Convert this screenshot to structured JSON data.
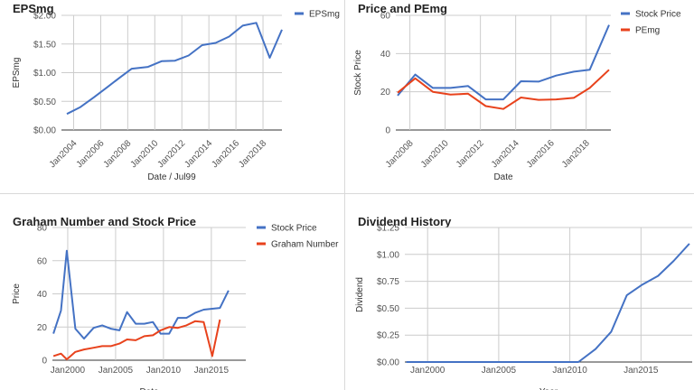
{
  "chart_data": [
    {
      "id": "eps",
      "type": "line",
      "title": "EPSmg",
      "xlabel": "Date / Jul99",
      "ylabel": "EPSmg",
      "x_type": "year",
      "xlim": [
        2003.1,
        2019.4
      ],
      "ylim": [
        0,
        2
      ],
      "yticks": [
        0,
        0.5,
        1,
        1.5,
        2
      ],
      "ytick_labels": [
        "$0.00",
        "$0.50",
        "$1.00",
        "$1.50",
        "$2.00"
      ],
      "xticks": [
        2004,
        2006,
        2008,
        2010,
        2012,
        2014,
        2016,
        2018
      ],
      "xtick_labels": [
        "Jan2004",
        "Jan2006",
        "Jan2008",
        "Jan2010",
        "Jan2012",
        "Jan2014",
        "Jan2016",
        "Jan2018"
      ],
      "x_label_rotation": -45,
      "grid": true,
      "legend": "right",
      "series": [
        {
          "name": "EPSmg",
          "color": "#4472c4",
          "points": [
            [
              2003.5,
              0.28
            ],
            [
              2004.5,
              0.4
            ],
            [
              2005.5,
              0.57
            ],
            [
              2006.5,
              0.75
            ],
            [
              2007.5,
              0.93
            ],
            [
              2008.3,
              1.07
            ],
            [
              2009.5,
              1.1
            ],
            [
              2010.5,
              1.2
            ],
            [
              2011.5,
              1.21
            ],
            [
              2012.5,
              1.3
            ],
            [
              2013.5,
              1.48
            ],
            [
              2014.5,
              1.52
            ],
            [
              2015.5,
              1.63
            ],
            [
              2016.5,
              1.82
            ],
            [
              2017.5,
              1.87
            ],
            [
              2018.5,
              1.26
            ],
            [
              2019.4,
              1.75
            ]
          ]
        }
      ]
    },
    {
      "id": "price-pe",
      "type": "line",
      "title": "Price and PEmg",
      "xlabel": "Date",
      "ylabel": "Stock Price",
      "x_type": "year",
      "xlim": [
        2007.2,
        2019.4
      ],
      "ylim": [
        0,
        60
      ],
      "yticks": [
        0,
        20,
        40,
        60
      ],
      "ytick_labels": [
        "0",
        "20",
        "40",
        "60"
      ],
      "xticks": [
        2008,
        2010,
        2012,
        2014,
        2016,
        2018
      ],
      "xtick_labels": [
        "Jan2008",
        "Jan2010",
        "Jan2012",
        "Jan2014",
        "Jan2016",
        "Jan2018"
      ],
      "x_label_rotation": -45,
      "grid": true,
      "legend": "right",
      "series": [
        {
          "name": "Stock Price",
          "color": "#4472c4",
          "points": [
            [
              2007.3,
              18
            ],
            [
              2008.3,
              29
            ],
            [
              2009.3,
              22
            ],
            [
              2010.3,
              22
            ],
            [
              2011.3,
              23
            ],
            [
              2012.3,
              16
            ],
            [
              2013.3,
              16
            ],
            [
              2014.3,
              25.5
            ],
            [
              2015.3,
              25.3
            ],
            [
              2016.3,
              28.5
            ],
            [
              2017.3,
              30.5
            ],
            [
              2018.2,
              31.5
            ],
            [
              2019.3,
              55
            ]
          ]
        },
        {
          "name": "PEmg",
          "color": "#e8421c",
          "points": [
            [
              2007.3,
              19.5
            ],
            [
              2008.3,
              27
            ],
            [
              2009.3,
              20
            ],
            [
              2010.3,
              18.5
            ],
            [
              2011.3,
              19
            ],
            [
              2012.3,
              12.5
            ],
            [
              2013.3,
              11
            ],
            [
              2014.3,
              17
            ],
            [
              2015.3,
              15.8
            ],
            [
              2016.3,
              16
            ],
            [
              2017.3,
              16.8
            ],
            [
              2018.2,
              22
            ],
            [
              2019.3,
              31.5
            ]
          ]
        }
      ]
    },
    {
      "id": "graham",
      "type": "line",
      "title": "Graham Number and Stock Price",
      "xlabel": "Date",
      "ylabel": "Price",
      "x_type": "year",
      "xlim": [
        1998.4,
        2018.6
      ],
      "ylim": [
        0,
        80
      ],
      "yticks": [
        0,
        20,
        40,
        60,
        80
      ],
      "ytick_labels": [
        "0",
        "20",
        "40",
        "60",
        "80"
      ],
      "xticks": [
        2000,
        2005,
        2010,
        2015
      ],
      "xtick_labels": [
        "Jan2000",
        "Jan2005",
        "Jan2010",
        "Jan2015"
      ],
      "x_label_rotation": 0,
      "grid": true,
      "legend": "right",
      "series": [
        {
          "name": "Stock Price",
          "color": "#4472c4",
          "points": [
            [
              1998.5,
              16
            ],
            [
              1999.3,
              30
            ],
            [
              1999.9,
              66
            ],
            [
              2000.8,
              19
            ],
            [
              2001.7,
              13
            ],
            [
              2002.7,
              19.5
            ],
            [
              2003.6,
              21
            ],
            [
              2004.5,
              19
            ],
            [
              2005.4,
              18
            ],
            [
              2006.2,
              29
            ],
            [
              2007.1,
              22
            ],
            [
              2008.0,
              22
            ],
            [
              2008.9,
              23
            ],
            [
              2009.7,
              16
            ],
            [
              2010.6,
              16
            ],
            [
              2011.5,
              25.5
            ],
            [
              2012.4,
              25.5
            ],
            [
              2013.3,
              28.5
            ],
            [
              2014.2,
              30.5
            ],
            [
              2015.1,
              31
            ],
            [
              2015.9,
              31.5
            ],
            [
              2016.8,
              42
            ]
          ]
        },
        {
          "name": "Graham Number",
          "color": "#e8421c",
          "points": [
            [
              1998.5,
              2.5
            ],
            [
              1999.3,
              4
            ],
            [
              1999.9,
              0.5
            ],
            [
              2000.8,
              5
            ],
            [
              2001.7,
              6.5
            ],
            [
              2002.7,
              7.5
            ],
            [
              2003.6,
              8.5
            ],
            [
              2004.5,
              8.5
            ],
            [
              2005.4,
              10
            ],
            [
              2006.2,
              12.5
            ],
            [
              2007.1,
              12
            ],
            [
              2008.0,
              14.5
            ],
            [
              2008.9,
              15
            ],
            [
              2009.7,
              18
            ],
            [
              2010.6,
              20
            ],
            [
              2011.5,
              19.5
            ],
            [
              2012.4,
              21
            ],
            [
              2013.3,
              23.5
            ],
            [
              2014.2,
              23
            ],
            [
              2015.1,
              2.5
            ],
            [
              2015.9,
              24.5
            ]
          ]
        }
      ]
    },
    {
      "id": "dividend",
      "type": "line",
      "title": "Dividend History",
      "xlabel": "Year",
      "ylabel": "Dividend",
      "x_type": "year",
      "xlim": [
        1998.4,
        2018.6
      ],
      "ylim": [
        0,
        1.25
      ],
      "yticks": [
        0,
        0.25,
        0.5,
        0.75,
        1,
        1.25
      ],
      "ytick_labels": [
        "$0.00",
        "$0.25",
        "$0.50",
        "$0.75",
        "$1.00",
        "$1.25"
      ],
      "xticks": [
        2000,
        2005,
        2010,
        2015
      ],
      "xtick_labels": [
        "Jan2000",
        "Jan2005",
        "Jan2010",
        "Jan2015"
      ],
      "x_label_rotation": 0,
      "grid": true,
      "legend": "none",
      "series": [
        {
          "name": "Dividend",
          "color": "#4472c4",
          "points": [
            [
              1998.5,
              0
            ],
            [
              2010.6,
              0
            ],
            [
              2011.8,
              0.12
            ],
            [
              2012.9,
              0.28
            ],
            [
              2014.0,
              0.62
            ],
            [
              2015.1,
              0.72
            ],
            [
              2016.2,
              0.8
            ],
            [
              2017.3,
              0.94
            ],
            [
              2018.4,
              1.1
            ]
          ]
        }
      ]
    }
  ]
}
